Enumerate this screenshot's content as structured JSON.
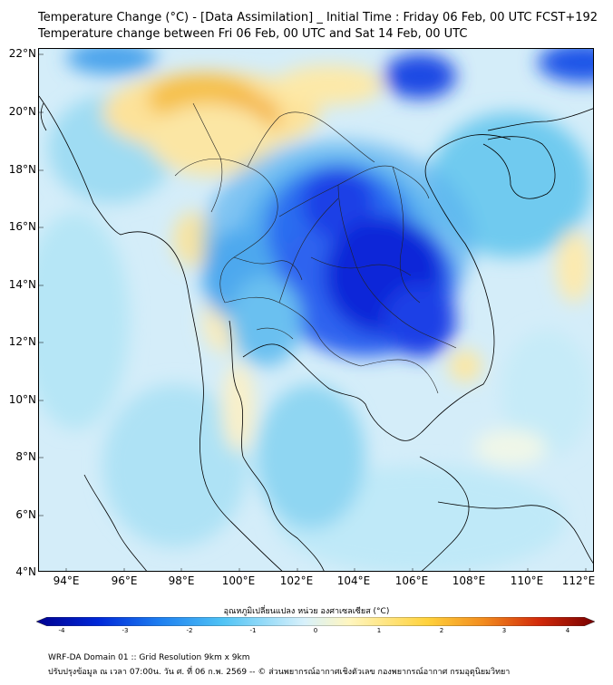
{
  "title_line1": "Temperature Change (°C) - [Data Assimilation] _ Initial Time : Friday 06 Feb, 00 UTC FCST+192",
  "title_line2": "Temperature change between Fri 06 Feb, 00 UTC and Sat 14 Feb, 00 UTC",
  "lat_labels": [
    "22°N",
    "20°N",
    "18°N",
    "16°N",
    "14°N",
    "12°N",
    "10°N",
    "8°N",
    "6°N",
    "4°N"
  ],
  "lon_labels": [
    "94°E",
    "96°E",
    "98°E",
    "100°E",
    "102°E",
    "104°E",
    "106°E",
    "108°E",
    "110°E",
    "112°E"
  ],
  "colorbar": {
    "label": "อุณหภูมิเปลี่ยนแปลง หน่วย องศาเซลเซียส (°C)",
    "ticks": [
      "-4",
      "-3",
      "-2",
      "-1",
      "0",
      "1",
      "2",
      "3",
      "4"
    ],
    "colors": [
      "#00008f",
      "#0028d8",
      "#1e7ff0",
      "#4fc3f5",
      "#d8f1fb",
      "#fff6c0",
      "#ffd23c",
      "#f28c1e",
      "#d22a0a",
      "#780000"
    ]
  },
  "footer_line1": "WRF-DA Domain 01 :: Grid Resolution 9km x 9km",
  "footer_line2": "ปรับปรุงข้อมูล ณ เวลา 07:00น. วัน ศ. ที่ 06 ก.พ. 2569 -- © ส่วนพยากรณ์อากาศเชิงตัวเลข กองพยากรณ์อากาศ กรมอุตุนิยมวิทยา"
}
